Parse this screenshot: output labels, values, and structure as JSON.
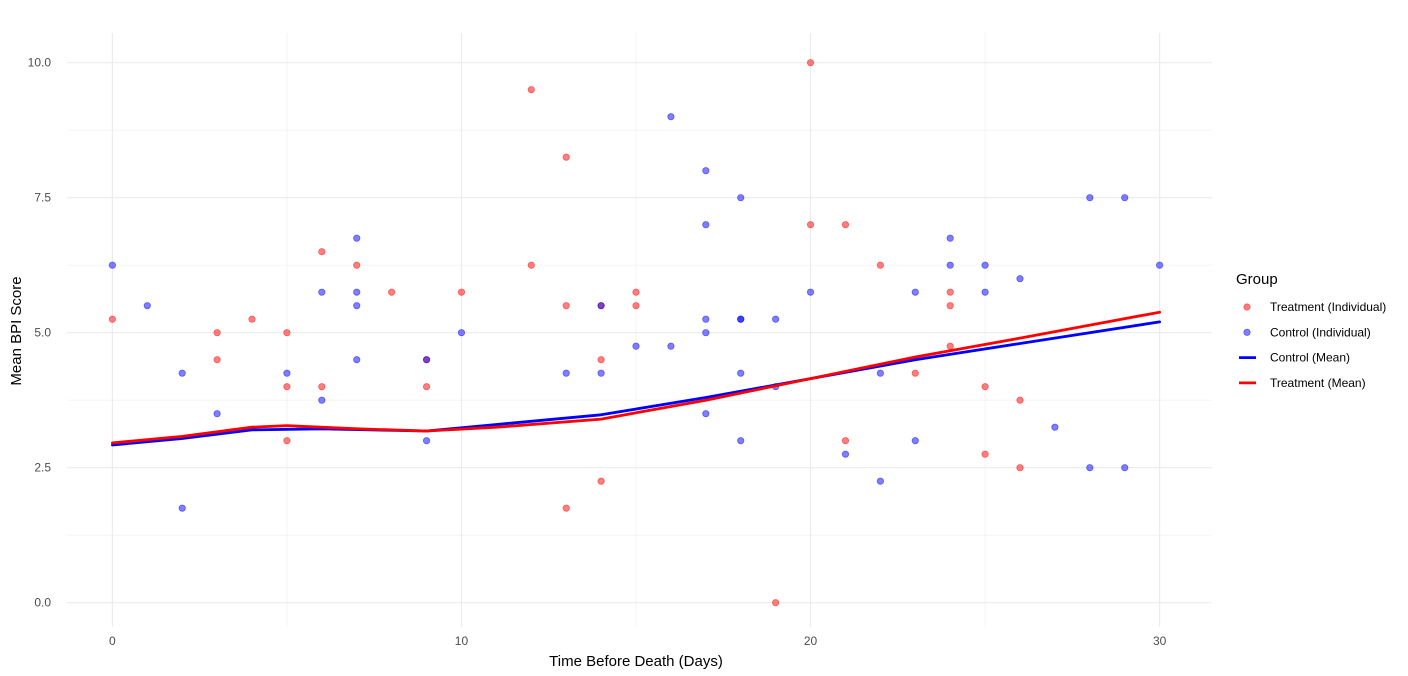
{
  "chart_data": {
    "type": "scatter",
    "xlabel": "Time Before Death (Days)",
    "ylabel": "Mean BPI Score",
    "xlim": [
      -1.3,
      31.5
    ],
    "ylim": [
      -0.45,
      10.55
    ],
    "x_ticks": [
      0,
      10,
      20,
      30
    ],
    "x_tick_labels": [
      "0",
      "10",
      "20",
      "30"
    ],
    "y_ticks": [
      0,
      2.5,
      5,
      7.5,
      10
    ],
    "y_tick_labels": [
      "0.0",
      "2.5",
      "5.0",
      "7.5",
      "10.0"
    ],
    "grid": true,
    "legend": {
      "title": "Group",
      "position": "right",
      "entries": [
        {
          "label": "Treatment (Individual)",
          "kind": "point",
          "color": "#ff0000"
        },
        {
          "label": "Control (Individual)",
          "kind": "point",
          "color": "#0000ff"
        },
        {
          "label": "Control (Mean)",
          "kind": "line",
          "color": "#0000ff"
        },
        {
          "label": "Treatment (Mean)",
          "kind": "line",
          "color": "#ff0000"
        }
      ]
    },
    "series": [
      {
        "name": "Treatment (Individual)",
        "kind": "points",
        "color": "#ff0000",
        "points": [
          [
            0,
            5.25
          ],
          [
            3,
            5.0
          ],
          [
            3,
            4.5
          ],
          [
            4,
            5.25
          ],
          [
            5,
            5.0
          ],
          [
            5,
            4.0
          ],
          [
            5,
            3.0
          ],
          [
            6,
            6.5
          ],
          [
            6,
            4.0
          ],
          [
            7,
            6.25
          ],
          [
            8,
            5.75
          ],
          [
            9,
            4.5
          ],
          [
            9,
            4.0
          ],
          [
            10,
            5.75
          ],
          [
            12,
            9.5
          ],
          [
            12,
            6.25
          ],
          [
            13,
            8.25
          ],
          [
            13,
            5.5
          ],
          [
            13,
            1.75
          ],
          [
            14,
            5.5
          ],
          [
            14,
            4.5
          ],
          [
            14,
            2.25
          ],
          [
            15,
            5.75
          ],
          [
            15,
            5.5
          ],
          [
            19,
            0.0
          ],
          [
            20,
            10.0
          ],
          [
            20,
            7.0
          ],
          [
            21,
            7.0
          ],
          [
            21,
            3.0
          ],
          [
            22,
            6.25
          ],
          [
            23,
            4.25
          ],
          [
            24,
            5.75
          ],
          [
            24,
            5.5
          ],
          [
            24,
            4.75
          ],
          [
            25,
            4.0
          ],
          [
            25,
            2.75
          ],
          [
            26,
            3.75
          ],
          [
            26,
            2.5
          ]
        ]
      },
      {
        "name": "Control (Individual)",
        "kind": "points",
        "color": "#0000ff",
        "points": [
          [
            0,
            6.25
          ],
          [
            1,
            5.5
          ],
          [
            2,
            4.25
          ],
          [
            2,
            1.75
          ],
          [
            3,
            3.5
          ],
          [
            5,
            4.25
          ],
          [
            6,
            5.75
          ],
          [
            6,
            3.75
          ],
          [
            7,
            6.75
          ],
          [
            7,
            5.75
          ],
          [
            7,
            5.5
          ],
          [
            7,
            4.5
          ],
          [
            9,
            4.5
          ],
          [
            9,
            3.0
          ],
          [
            10,
            5.0
          ],
          [
            13,
            4.25
          ],
          [
            14,
            5.5
          ],
          [
            14,
            4.25
          ],
          [
            15,
            4.75
          ],
          [
            16,
            9.0
          ],
          [
            16,
            4.75
          ],
          [
            17,
            8.0
          ],
          [
            17,
            7.0
          ],
          [
            17,
            5.25
          ],
          [
            17,
            5.0
          ],
          [
            17,
            3.5
          ],
          [
            18,
            7.5
          ],
          [
            18,
            5.25
          ],
          [
            18,
            5.25
          ],
          [
            18,
            4.25
          ],
          [
            18,
            3.0
          ],
          [
            19,
            5.25
          ],
          [
            19,
            4.0
          ],
          [
            20,
            5.75
          ],
          [
            21,
            2.75
          ],
          [
            22,
            4.25
          ],
          [
            22,
            2.25
          ],
          [
            23,
            5.75
          ],
          [
            23,
            3.0
          ],
          [
            24,
            6.75
          ],
          [
            24,
            6.25
          ],
          [
            25,
            6.25
          ],
          [
            25,
            5.75
          ],
          [
            26,
            6.0
          ],
          [
            27,
            3.25
          ],
          [
            28,
            7.5
          ],
          [
            28,
            2.5
          ],
          [
            29,
            7.5
          ],
          [
            29,
            2.5
          ],
          [
            30,
            6.25
          ]
        ]
      },
      {
        "name": "Control (Mean)",
        "kind": "line",
        "color": "#0000ff",
        "points": [
          [
            0,
            2.92
          ],
          [
            2,
            3.04
          ],
          [
            4,
            3.2
          ],
          [
            6,
            3.22
          ],
          [
            9,
            3.18
          ],
          [
            11,
            3.3
          ],
          [
            14,
            3.48
          ],
          [
            17,
            3.8
          ],
          [
            20,
            4.15
          ],
          [
            23,
            4.5
          ],
          [
            26,
            4.8
          ],
          [
            30,
            5.2
          ]
        ]
      },
      {
        "name": "Treatment (Mean)",
        "kind": "line",
        "color": "#ff0000",
        "points": [
          [
            0,
            2.96
          ],
          [
            2,
            3.08
          ],
          [
            4,
            3.25
          ],
          [
            5,
            3.28
          ],
          [
            7,
            3.22
          ],
          [
            9,
            3.18
          ],
          [
            11,
            3.25
          ],
          [
            14,
            3.4
          ],
          [
            17,
            3.75
          ],
          [
            20,
            4.15
          ],
          [
            23,
            4.55
          ],
          [
            26,
            4.9
          ],
          [
            30,
            5.38
          ]
        ]
      }
    ]
  }
}
